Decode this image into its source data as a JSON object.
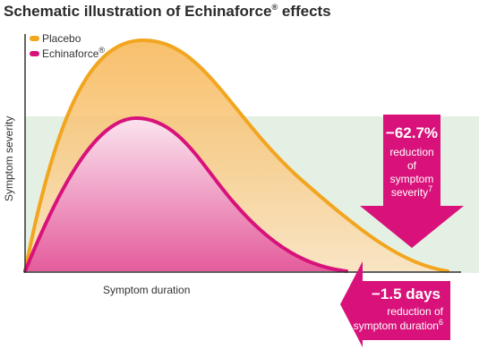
{
  "title": "Schematic illustration of Echinaforce",
  "title_mark": "®",
  "title_suffix": " effects",
  "colors": {
    "placebo": "#f2a51f",
    "echinaforce": "#d8127a",
    "band": "#dcebdc",
    "arrow": "#d8127a"
  },
  "chart_data": {
    "type": "area",
    "xlabel": "Symptom duration",
    "ylabel": "Symptom severity",
    "legend": {
      "position": "top-left"
    },
    "series": [
      {
        "name": "Placebo",
        "color": "#f2a51f"
      },
      {
        "name": "Echinaforce",
        "name_mark": "®",
        "color": "#d8127a"
      }
    ],
    "annotations": {
      "severity": {
        "value": "−62.7%",
        "lines": [
          "reduction",
          "of",
          "symptom",
          "severity"
        ],
        "ref": "7"
      },
      "duration": {
        "value": "−1.5 days",
        "lines": [
          "reduction of",
          "symptom duration"
        ],
        "ref": "6"
      }
    }
  }
}
